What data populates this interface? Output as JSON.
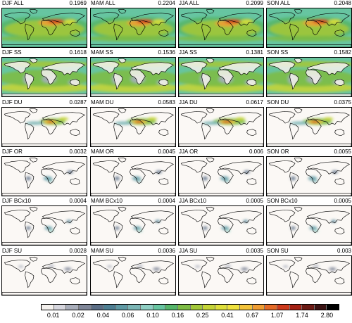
{
  "figure": {
    "columns": [
      "DJF",
      "MAM",
      "JJA",
      "SON"
    ],
    "rows": [
      {
        "species": "ALL",
        "values": [
          "0.1969",
          "0.2204",
          "0.2099",
          "0.2048"
        ],
        "style": "all"
      },
      {
        "species": "SS",
        "values": [
          "0.1618",
          "0.1536",
          "0.1381",
          "0.1582"
        ],
        "style": "ss"
      },
      {
        "species": "DU",
        "values": [
          "0.0287",
          "0.0583",
          "0.0617",
          "0.0375"
        ],
        "style": "du"
      },
      {
        "species": "OR",
        "values": [
          "0.0032",
          "0.0045",
          "0.006",
          "0.0055"
        ],
        "style": "or"
      },
      {
        "species": "BCx10",
        "values": [
          "0.0004",
          "0.0004",
          "0.0005",
          "0.0005"
        ],
        "style": "bc"
      },
      {
        "species": "SU",
        "values": [
          "0.0028",
          "0.0036",
          "0.0035",
          "0.003"
        ],
        "style": "su"
      }
    ]
  },
  "colorbar": {
    "labels": [
      "0.01",
      "0.02",
      "0.04",
      "0.06",
      "0.10",
      "0.16",
      "0.25",
      "0.41",
      "0.67",
      "1.07",
      "1.74",
      "2.80"
    ],
    "colors": [
      "#f4f1ee",
      "#d6d6de",
      "#a9aebb",
      "#7f8698",
      "#5b6e86",
      "#4e7f93",
      "#5f9aa5",
      "#7bb6b6",
      "#8fcfc4",
      "#67c5a1",
      "#55b66a",
      "#7dbc45",
      "#a3c83a",
      "#c4d437",
      "#dedf3b",
      "#efe23e",
      "#f3c33a",
      "#ef9d33",
      "#e46a27",
      "#cd3a1c",
      "#a42014",
      "#6b1a14",
      "#3a1212",
      "#000000"
    ]
  }
}
